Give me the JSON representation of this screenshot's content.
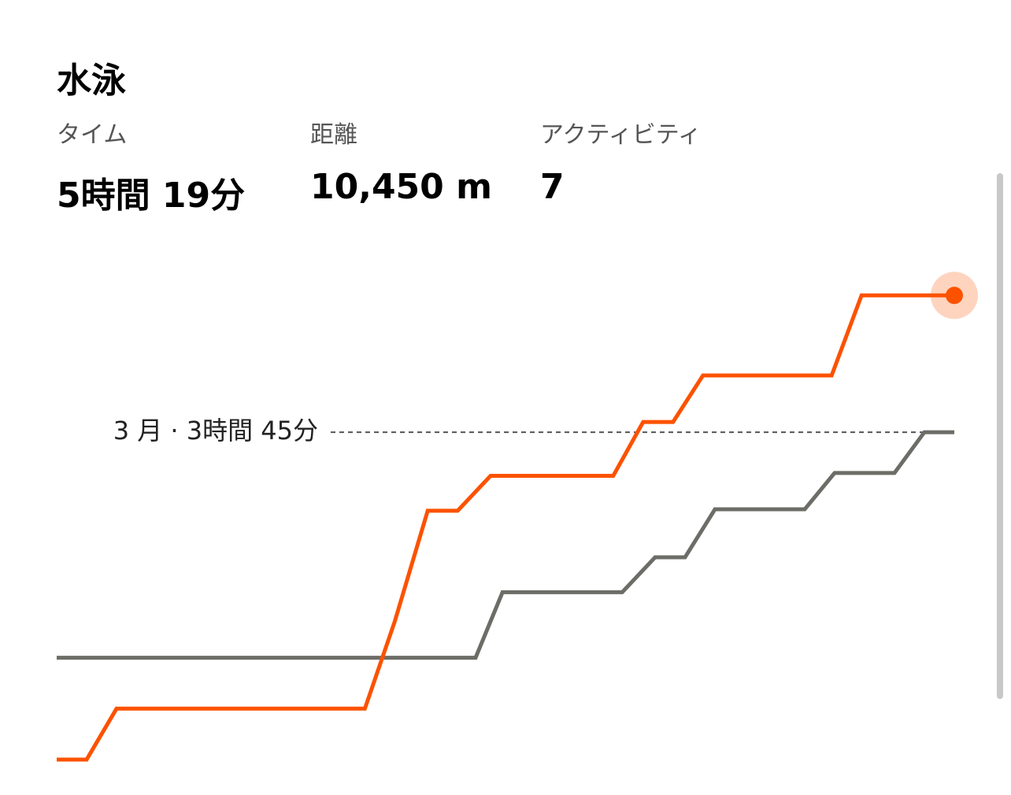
{
  "header": {
    "title": "水泳"
  },
  "stats": [
    {
      "label": "タイム",
      "value": "5時間 19分"
    },
    {
      "label": "距離",
      "value": "10,450 m"
    },
    {
      "label": "アクティビティ",
      "value": "7"
    }
  ],
  "chart_data": {
    "type": "line",
    "xlim": [
      0,
      30
    ],
    "ylim": [
      0,
      350
    ],
    "series": [
      {
        "color": "#fc5200",
        "x": [
          0,
          1,
          2,
          10.3,
          11.3,
          12.4,
          13.4,
          14.5,
          18.6,
          19.6,
          20.6,
          21.6,
          25.9,
          26.9,
          30
        ],
        "values": [
          0,
          0,
          35,
          35,
          95,
          171,
          171,
          195,
          195,
          232,
          232,
          264,
          264,
          319,
          319
        ]
      },
      {
        "color": "#6d6d68",
        "x": [
          0,
          14,
          14.9,
          18.9,
          20,
          21,
          22,
          25,
          26,
          28,
          29,
          30
        ],
        "values": [
          70,
          70,
          115,
          115,
          139,
          139,
          172,
          172,
          197,
          197,
          225,
          225
        ]
      }
    ],
    "reference": {
      "label": "3 月 · 3時間 45分",
      "value": 225
    }
  }
}
